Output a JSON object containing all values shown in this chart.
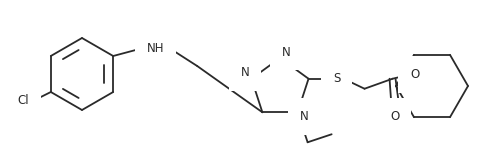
{
  "bg_color": "#ffffff",
  "line_color": "#2a2a2a",
  "line_width": 1.3,
  "font_size": 8.5,
  "figsize": [
    5.01,
    1.48
  ],
  "dpi": 100,
  "xlim": [
    0,
    501
  ],
  "ylim": [
    0,
    148
  ]
}
